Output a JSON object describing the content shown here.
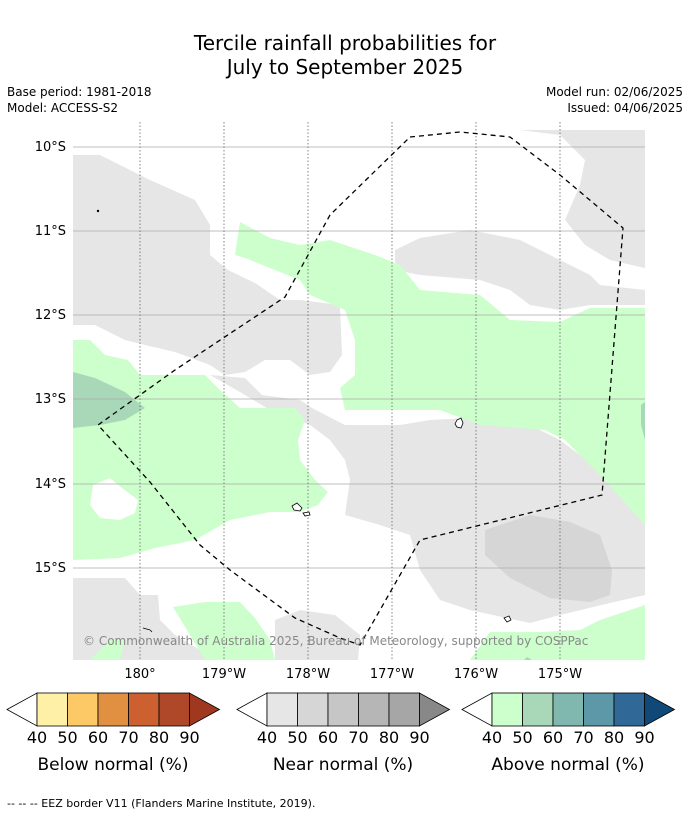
{
  "title": {
    "line1": "Tercile rainfall probabilities for",
    "line2": "July to September 2025"
  },
  "meta": {
    "base_period": "Base period: 1981-2018",
    "model": "Model: ACCESS-S2",
    "model_run": "Model run: 02/06/2025",
    "issued": "Issued: 04/06/2025"
  },
  "map": {
    "lat_labels": [
      "10°S",
      "11°S",
      "12°S",
      "13°S",
      "14°S",
      "15°S"
    ],
    "lon_labels": [
      "180°",
      "179°W",
      "178°W",
      "177°W",
      "176°W",
      "175°W"
    ],
    "copyright": "© Commonwealth of Australia 2025, Bureau of Meteorology, supported by COSPPac"
  },
  "legend": {
    "tick_labels": [
      "40",
      "50",
      "60",
      "70",
      "80",
      "90"
    ],
    "below": {
      "title": "Below normal (%)",
      "colors": [
        "#fff0a8",
        "#fdc866",
        "#e09040",
        "#cc6030",
        "#ae4828",
        "#a03820"
      ]
    },
    "near": {
      "title": "Near normal (%)",
      "colors": [
        "#e6e6e6",
        "#d6d6d6",
        "#c6c6c6",
        "#b6b6b6",
        "#a6a6a6",
        "#888888"
      ]
    },
    "above": {
      "title": "Above normal (%)",
      "colors": [
        "#ccffcc",
        "#a8d8b8",
        "#80b8b0",
        "#5c98a8",
        "#306898",
        "#104878"
      ]
    }
  },
  "footer": "--  --  -- EEZ border V11 (Flanders Marine Institute, 2019)."
}
